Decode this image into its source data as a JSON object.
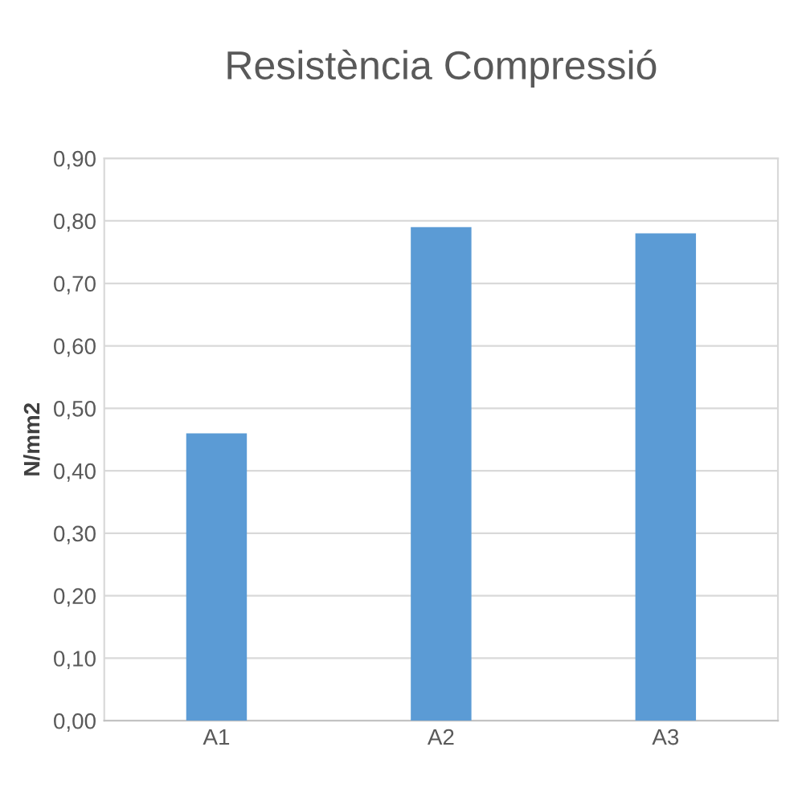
{
  "chart_data": {
    "type": "bar",
    "title": "Resistència Compressió",
    "ylabel": "N/mm2",
    "categories": [
      "A1",
      "A2",
      "A3"
    ],
    "values": [
      0.46,
      0.79,
      0.78
    ],
    "color": "#5b9bd5",
    "ylim": [
      0,
      0.9
    ],
    "yticks": [
      {
        "value": 0,
        "label": "0,00"
      },
      {
        "value": 0.1,
        "label": "0,10"
      },
      {
        "value": 0.2,
        "label": "0,20"
      },
      {
        "value": 0.3,
        "label": "0,30"
      },
      {
        "value": 0.4,
        "label": "0,40"
      },
      {
        "value": 0.5,
        "label": "0,50"
      },
      {
        "value": 0.6,
        "label": "0,60"
      },
      {
        "value": 0.7,
        "label": "0,70"
      },
      {
        "value": 0.8,
        "label": "0,80"
      },
      {
        "value": 0.9,
        "label": "0,90"
      }
    ],
    "grid": "y"
  }
}
